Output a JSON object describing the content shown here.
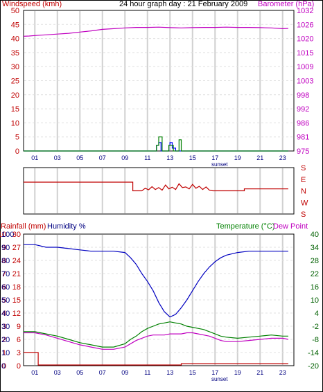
{
  "colors": {
    "wind": "#008000",
    "gust": "#0000ff",
    "baro": "#c000c0",
    "dir": "#c00000",
    "temp": "#008000",
    "dew": "#c000c0",
    "humidity": "#0000c0",
    "rain": "#c00000",
    "axis_red": "#c00000",
    "axis_mag": "#c000c0",
    "axis_blue": "#000080",
    "axis_green": "#006000",
    "grid": "#d0d0d0"
  },
  "hour_ticks": [
    "01",
    "03",
    "05",
    "07",
    "09",
    "11",
    "13",
    "15",
    "17",
    "19",
    "21",
    "23"
  ],
  "sunset_label": "sunset",
  "chart_data": [
    {
      "type": "line",
      "title": "24 hour graph day : 21 February 2009",
      "ylabel_left": "Windspeed (kmh)",
      "ylabel_right": "Barometer (hPa)",
      "y_left_ticks": [
        "50",
        "45",
        "40",
        "35",
        "30",
        "25",
        "20",
        "15",
        "10",
        "5",
        "0"
      ],
      "y_right_ticks": [
        "1032",
        "1026",
        "1020",
        "1015",
        "1009",
        "1003",
        "998",
        "992",
        "986",
        "981",
        "975"
      ],
      "ylim_left": [
        0,
        50
      ],
      "ylim_right": [
        975,
        1032
      ],
      "xlim": [
        0,
        24
      ],
      "series": [
        {
          "name": "Barometer",
          "axis": "right",
          "color_key": "baro",
          "x": [
            0,
            0.5,
            1,
            2,
            3,
            4,
            5,
            6,
            7,
            8,
            9,
            10,
            11,
            12,
            13,
            14,
            15,
            16,
            17,
            18,
            19,
            20,
            21,
            22,
            23,
            23.5
          ],
          "y": [
            1021.5,
            1021.6,
            1021.8,
            1022.1,
            1022.4,
            1022.7,
            1023.2,
            1023.7,
            1024.3,
            1024.6,
            1024.9,
            1025.1,
            1025.1,
            1025.2,
            1025.0,
            1024.9,
            1025.0,
            1025.1,
            1025.1,
            1025.2,
            1025.1,
            1025.1,
            1025.0,
            1024.9,
            1024.6,
            1024.7
          ]
        },
        {
          "name": "Gust",
          "axis": "left",
          "color_key": "gust",
          "x": [
            0,
            11.8,
            11.8,
            12.0,
            12.0,
            12.2,
            12.2,
            12.9,
            12.9,
            13.0,
            13.0,
            13.2,
            13.2,
            13.5,
            13.5,
            23.5
          ],
          "y": [
            0,
            0,
            2,
            2,
            3,
            3,
            0,
            0,
            2,
            2,
            3,
            3,
            1,
            1,
            0,
            0
          ]
        },
        {
          "name": "Windspeed",
          "axis": "left",
          "color_key": "wind",
          "x": [
            0,
            11.8,
            11.8,
            12.0,
            12.0,
            12.3,
            12.3,
            12.9,
            12.9,
            13.3,
            13.3,
            13.8,
            13.8,
            14.0,
            14.0,
            23.5
          ],
          "y": [
            0,
            0,
            2,
            2,
            5,
            5,
            0,
            0,
            2,
            2,
            0,
            0,
            4,
            4,
            0,
            0
          ]
        }
      ]
    },
    {
      "type": "line",
      "ylabel_right_ticks": [
        "S",
        "E",
        "N",
        "W",
        "S"
      ],
      "ylim": [
        0,
        360
      ],
      "xlim": [
        0,
        24
      ],
      "series": [
        {
          "name": "Wind direction",
          "color_key": "dir",
          "x": [
            0,
            9.7,
            9.7,
            10.5,
            10.8,
            11.1,
            11.4,
            11.7,
            12.0,
            12.3,
            12.6,
            12.9,
            13.2,
            13.5,
            13.8,
            14.1,
            14.4,
            14.7,
            15.0,
            15.3,
            15.6,
            15.9,
            16.2,
            16.5,
            16.8,
            18,
            19.6,
            19.6,
            23.5
          ],
          "y": [
            247,
            247,
            180,
            180,
            200,
            188,
            212,
            190,
            205,
            185,
            225,
            195,
            208,
            190,
            235,
            205,
            210,
            195,
            230,
            200,
            215,
            190,
            210,
            185,
            180,
            180,
            180,
            195,
            195
          ]
        }
      ]
    },
    {
      "type": "line",
      "ylabel_left": "Rainfall (mm)",
      "ylabel_left2": "Humidity %",
      "ylabel_right": "Temperature (°C)",
      "ylabel_right2": "Dew Point",
      "y_rain_ticks": [
        "10",
        "9",
        "8",
        "7",
        "6",
        "5",
        "4",
        "3",
        "2",
        "1",
        "0"
      ],
      "y_hum_ticks": [
        "100",
        "90",
        "80",
        "70",
        "60",
        "50",
        "40",
        "30",
        "20",
        "10",
        "0"
      ],
      "y_temp_ticks": [
        "30",
        "27",
        "24",
        "21",
        "18",
        "15",
        "12",
        "9",
        "6",
        "3",
        "0"
      ],
      "y_right_ticks": [
        "40",
        "34",
        "28",
        "22",
        "16",
        "10",
        "4",
        "-2",
        "-8",
        "-14",
        "-20"
      ],
      "ylim_left": [
        0,
        100
      ],
      "ylim_right": [
        -20,
        40
      ],
      "xlim": [
        0,
        24
      ],
      "series": [
        {
          "name": "Humidity",
          "axis": "left",
          "color_key": "humidity",
          "x": [
            0,
            1,
            2,
            3,
            4,
            5,
            6,
            7,
            8,
            9,
            9.5,
            10,
            10.5,
            11,
            11.5,
            12,
            12.5,
            13,
            13.5,
            14,
            14.5,
            15,
            15.5,
            16,
            16.5,
            17,
            17.5,
            18,
            19,
            20,
            21,
            22,
            23,
            23.5
          ],
          "y": [
            92,
            92,
            90,
            90,
            89,
            88,
            87,
            87,
            87,
            86,
            82,
            77,
            70,
            64,
            57,
            48,
            41,
            37,
            39,
            44,
            50,
            57,
            64,
            70,
            75,
            79,
            82,
            84,
            86,
            87,
            87,
            87,
            87,
            87
          ]
        },
        {
          "name": "Temperature",
          "axis": "right",
          "color_key": "temp",
          "x": [
            0,
            1,
            2,
            3,
            4,
            5,
            6,
            7,
            8,
            9,
            9.5,
            10,
            10.5,
            11,
            11.5,
            12,
            12.5,
            13,
            13.5,
            14,
            14.5,
            15,
            15.5,
            16,
            16.5,
            17,
            17.5,
            18,
            19,
            20,
            21,
            22,
            23,
            23.5
          ],
          "y": [
            -4.5,
            -4.5,
            -5.5,
            -6.5,
            -8.0,
            -9.5,
            -10.5,
            -11.5,
            -11.5,
            -10.0,
            -8.0,
            -6.5,
            -4.5,
            -3.0,
            -2.0,
            -1.0,
            -0.5,
            0.0,
            -0.5,
            -1.0,
            -2.0,
            -2.5,
            -3.0,
            -3.5,
            -4.5,
            -5.5,
            -6.5,
            -7.0,
            -7.5,
            -7.0,
            -6.5,
            -6.0,
            -6.5,
            -6.5
          ]
        },
        {
          "name": "Dew Point",
          "axis": "right",
          "color_key": "dew",
          "x": [
            0,
            1,
            2,
            3,
            4,
            5,
            6,
            7,
            8,
            9,
            9.5,
            10,
            10.5,
            11,
            11.5,
            12,
            12.5,
            13,
            13.5,
            14,
            14.5,
            15,
            15.5,
            16,
            16.5,
            17,
            17.5,
            18,
            19,
            20,
            21,
            22,
            23,
            23.5
          ],
          "y": [
            -5.0,
            -5.0,
            -6.0,
            -7.5,
            -9.0,
            -10.5,
            -11.5,
            -12.5,
            -12.5,
            -11.5,
            -10.0,
            -8.5,
            -7.5,
            -6.5,
            -6.0,
            -6.0,
            -6.0,
            -5.5,
            -5.5,
            -5.5,
            -5.0,
            -5.0,
            -5.5,
            -6.0,
            -6.5,
            -7.5,
            -8.5,
            -9.0,
            -9.0,
            -8.5,
            -8.0,
            -7.5,
            -7.5,
            -8.0
          ]
        },
        {
          "name": "Rainfall",
          "axis": "rain",
          "color_key": "rain",
          "x": [
            0,
            1.3,
            1.3,
            14,
            14,
            23.5
          ],
          "y": [
            1.0,
            1.0,
            0.05,
            0.05,
            0.15,
            0.15
          ]
        }
      ]
    }
  ]
}
